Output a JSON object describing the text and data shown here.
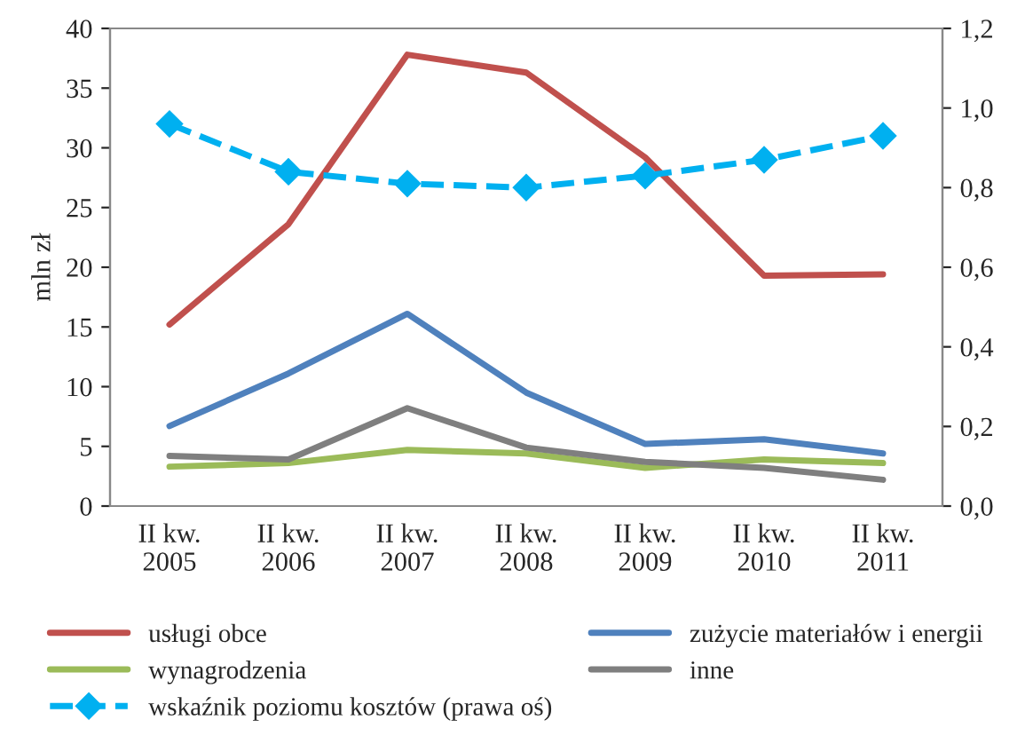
{
  "chart_data": {
    "type": "line",
    "ylabel": "mln zł",
    "categories": [
      "II kw.\n2005",
      "II kw.\n2006",
      "II kw.\n2007",
      "II kw.\n2008",
      "II kw.\n2009",
      "II kw.\n2010",
      "II kw.\n2011"
    ],
    "series": [
      {
        "name": "usługi obce",
        "color": "#c0504d",
        "values": [
          15.2,
          23.6,
          37.8,
          36.3,
          29.2,
          19.3,
          19.4
        ]
      },
      {
        "name": "zużycie materiałów i energii",
        "color": "#4f81bd",
        "values": [
          6.7,
          11.1,
          16.1,
          9.5,
          5.2,
          5.6,
          4.4
        ]
      },
      {
        "name": "wynagrodzenia",
        "color": "#9bbb59",
        "values": [
          3.3,
          3.6,
          4.7,
          4.4,
          3.2,
          3.9,
          3.6
        ]
      },
      {
        "name": "inne",
        "color": "#7f7f7f",
        "values": [
          4.2,
          3.9,
          8.2,
          4.9,
          3.7,
          3.2,
          2.2
        ]
      },
      {
        "name": "wskaźnik poziomu kosztów (prawa oś)",
        "color": "#00b0f0",
        "axis": "y2",
        "marker": "diamond",
        "line_style": "dashed",
        "values": [
          0.96,
          0.84,
          0.81,
          0.8,
          0.83,
          0.87,
          0.93
        ]
      }
    ],
    "ylim": [
      0,
      40
    ],
    "yticks": [
      0,
      5,
      10,
      15,
      20,
      25,
      30,
      35,
      40
    ],
    "y2lim": [
      0,
      1.2
    ],
    "y2ticks": [
      {
        "value": 0,
        "label": "0,0"
      },
      {
        "value": 0.2,
        "label": "0,2"
      },
      {
        "value": 0.4,
        "label": "0,4"
      },
      {
        "value": 0.6,
        "label": "0,6"
      },
      {
        "value": 0.8,
        "label": "0,8"
      },
      {
        "value": 1.0,
        "label": "1,0"
      },
      {
        "value": 1.2,
        "label": "1,2"
      }
    ],
    "grid": false,
    "legend": "bottom"
  }
}
